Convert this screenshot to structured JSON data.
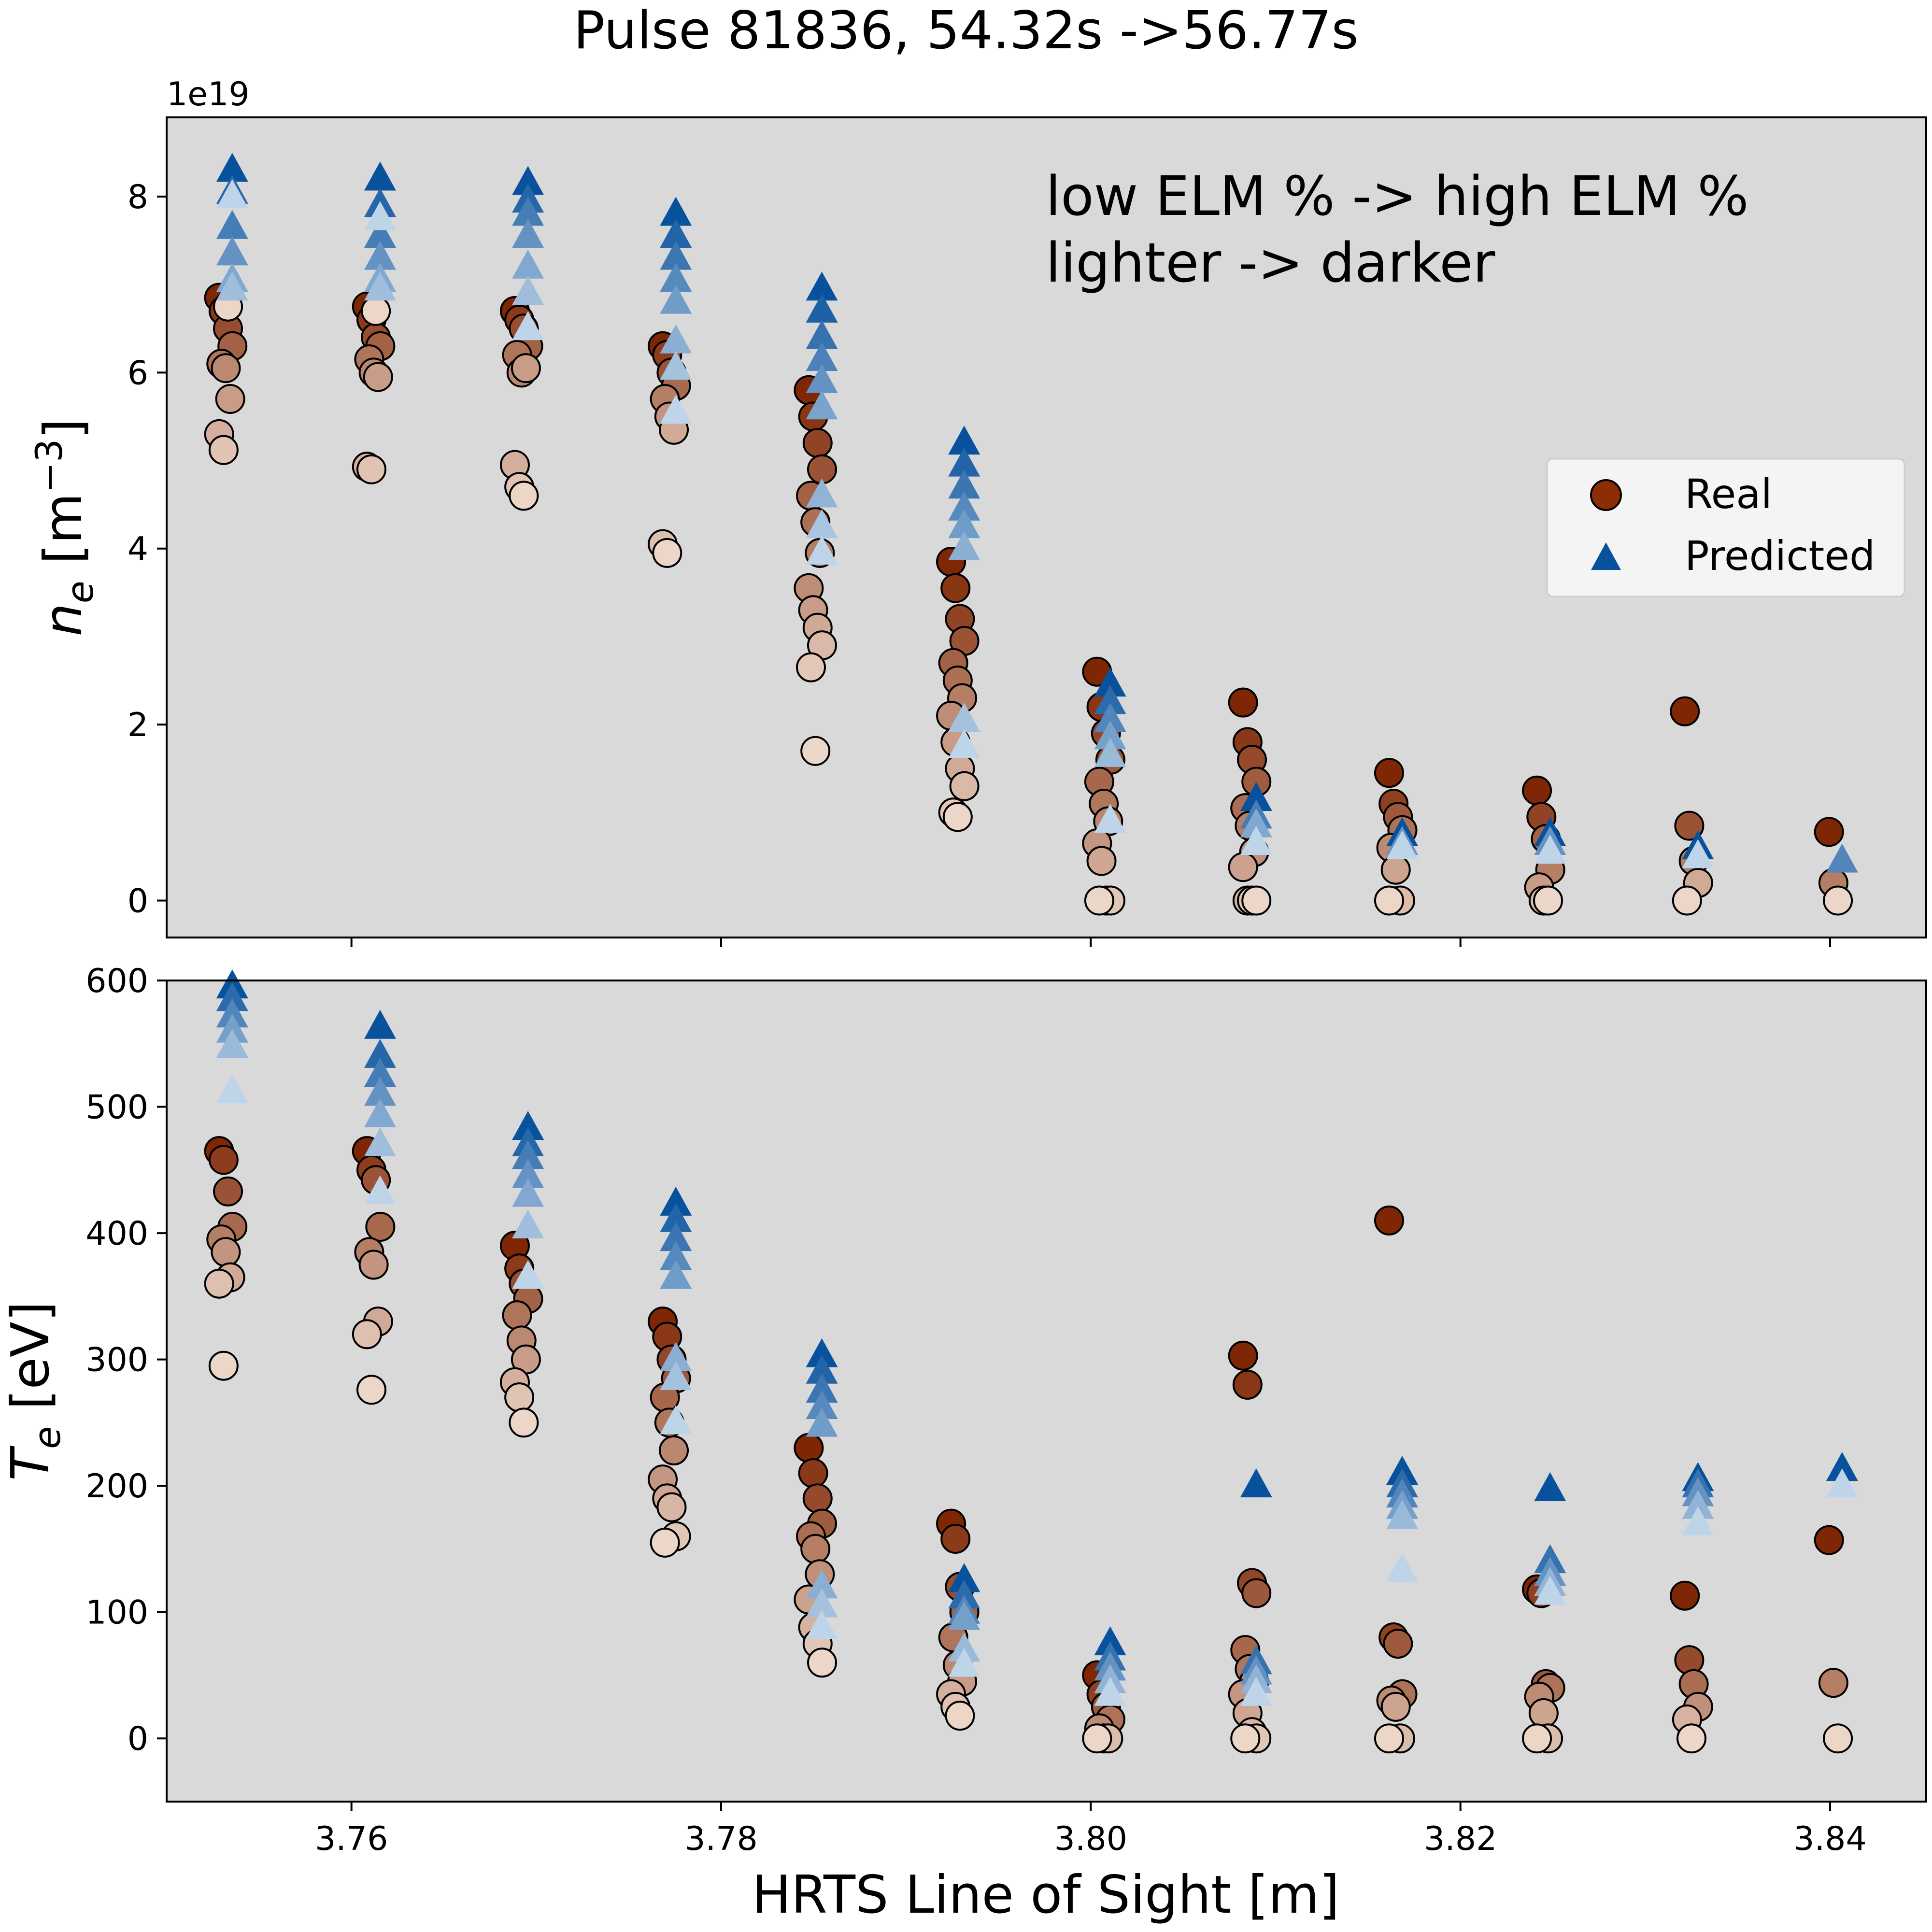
{
  "figure": {
    "title": "Pulse 81836, 54.32s ->56.77s",
    "xlabel": "HRTS Line of Sight [m]",
    "annotation_line1": "low ELM % -> high ELM %",
    "annotation_line2": "lighter -> darker",
    "legend": {
      "real": "Real",
      "predicted": "Predicted"
    }
  },
  "colors": {
    "panel_bg": "#d9d9d9",
    "real_dark": "#7f2704",
    "real_light": "#fff5eb",
    "pred_dark": "#08519c",
    "pred_light": "#deebf7",
    "marker_edge": "#000000"
  },
  "chart_data": [
    {
      "type": "scatter",
      "name": "ne",
      "ylabel_main": "n",
      "ylabel_sub": "e",
      "ylabel_unit": " [m",
      "ylabel_exp": "−3",
      "ylabel_close": "]",
      "offset_text": "1e19",
      "ylim": [
        -0.42,
        8.9
      ],
      "yticks": [
        0,
        2,
        4,
        6,
        8
      ],
      "xlim": [
        3.75,
        3.8452
      ],
      "xticks": [
        3.76,
        3.78,
        3.8,
        3.82,
        3.84
      ],
      "xticklabels": [
        "3.76",
        "3.78",
        "3.80",
        "3.82",
        "3.84"
      ],
      "legend": "right",
      "grid": false,
      "x_positions": [
        3.7532,
        3.7612,
        3.7692,
        3.7772,
        3.7851,
        3.7928,
        3.8007,
        3.8086,
        3.8165,
        3.8245,
        3.8325,
        3.8403
      ],
      "series": [
        {
          "name": "Real",
          "marker": "circle",
          "groups": [
            [
              6.85,
              6.7,
              6.5,
              6.3,
              6.1,
              6.05,
              5.7,
              5.3,
              5.12,
              6.75
            ],
            [
              6.75,
              6.6,
              6.4,
              6.3,
              6.15,
              6.0,
              5.95,
              4.93,
              4.9,
              6.7
            ],
            [
              6.7,
              6.6,
              6.5,
              6.3,
              6.2,
              6.0,
              6.05,
              4.95,
              4.7,
              4.6
            ],
            [
              6.3,
              6.2,
              6.0,
              5.85,
              5.7,
              5.5,
              5.35,
              4.05,
              3.95
            ],
            [
              5.8,
              5.5,
              5.2,
              4.9,
              4.6,
              4.3,
              3.95,
              3.55,
              3.3,
              3.1,
              2.9,
              2.65,
              1.7
            ],
            [
              3.85,
              3.55,
              3.2,
              2.95,
              2.7,
              2.5,
              2.3,
              2.1,
              1.8,
              1.5,
              1.3,
              1.0,
              0.95
            ],
            [
              2.6,
              2.2,
              1.9,
              1.6,
              1.35,
              1.1,
              0.9,
              0.65,
              0.45,
              0.0,
              0.0,
              0.0
            ],
            [
              2.25,
              1.8,
              1.6,
              1.35,
              1.05,
              0.85,
              0.55,
              0.38,
              0.0,
              0.0,
              0.0
            ],
            [
              1.45,
              1.1,
              0.95,
              0.8,
              0.6,
              0.35,
              0.0,
              0.0
            ],
            [
              1.25,
              0.95,
              0.7,
              0.35,
              0.15,
              0.0,
              0.0
            ],
            [
              2.15,
              0.85,
              0.45,
              0.2,
              0.0
            ],
            [
              0.78,
              0.2,
              0.0
            ]
          ]
        },
        {
          "name": "Predicted",
          "marker": "triangle",
          "groups": [
            [
              8.3,
              8.05,
              7.65,
              7.35,
              7.05,
              6.95,
              8.0
            ],
            [
              8.2,
              7.9,
              7.55,
              7.3,
              7.05,
              6.95,
              7.75
            ],
            [
              8.15,
              7.95,
              7.8,
              7.55,
              7.2,
              6.9,
              6.5
            ],
            [
              7.8,
              7.55,
              7.3,
              7.05,
              6.8,
              6.35,
              6.05,
              5.55
            ],
            [
              6.95,
              6.7,
              6.4,
              6.15,
              5.9,
              5.6,
              4.6,
              4.25,
              3.95
            ],
            [
              5.2,
              4.95,
              4.7,
              4.45,
              4.25,
              4.0,
              2.05,
              1.75
            ],
            [
              2.45,
              2.25,
              2.05,
              1.85,
              1.65,
              0.9
            ],
            [
              1.15,
              0.95,
              0.85,
              0.65
            ],
            [
              0.75,
              0.65,
              0.6
            ],
            [
              0.75,
              0.65,
              0.55
            ],
            [
              0.6,
              0.5
            ],
            [
              0.45
            ]
          ]
        }
      ]
    },
    {
      "type": "scatter",
      "name": "Te",
      "ylabel_main": "T",
      "ylabel_sub": "e",
      "ylabel_unit": " [eV]",
      "ylim": [
        -50,
        600
      ],
      "yticks": [
        0,
        100,
        200,
        300,
        400,
        500,
        600
      ],
      "xlim": [
        3.75,
        3.8452
      ],
      "xticks": [
        3.76,
        3.78,
        3.8,
        3.82,
        3.84
      ],
      "xticklabels": [
        "3.76",
        "3.78",
        "3.80",
        "3.82",
        "3.84"
      ],
      "grid": false,
      "x_positions": [
        3.7532,
        3.7612,
        3.7692,
        3.7772,
        3.7851,
        3.7928,
        3.8007,
        3.8086,
        3.8165,
        3.8245,
        3.8325,
        3.8403
      ],
      "series": [
        {
          "name": "Real",
          "marker": "circle",
          "groups": [
            [
              465,
              458,
              433,
              405,
              395,
              385,
              365,
              360,
              295
            ],
            [
              465,
              450,
              442,
              405,
              385,
              375,
              330,
              320,
              276
            ],
            [
              390,
              372,
              360,
              348,
              335,
              315,
              300,
              282,
              270,
              250
            ],
            [
              330,
              318,
              300,
              285,
              270,
              250,
              228,
              205,
              190,
              183,
              160,
              155
            ],
            [
              230,
              210,
              190,
              170,
              160,
              150,
              130,
              110,
              88,
              75,
              60
            ],
            [
              170,
              158,
              120,
              100,
              80,
              58,
              45,
              35,
              25,
              18
            ],
            [
              50,
              35,
              25,
              15,
              8,
              0,
              0,
              0
            ],
            [
              303,
              280,
              123,
              115,
              70,
              55,
              45,
              35,
              20,
              5,
              0,
              0
            ],
            [
              410,
              80,
              75,
              35,
              30,
              25,
              0,
              0
            ],
            [
              118,
              115,
              43,
              40,
              33,
              20,
              0,
              0
            ],
            [
              113,
              62,
              43,
              25,
              15,
              0
            ],
            [
              157,
              44,
              0
            ]
          ]
        },
        {
          "name": "Predicted",
          "marker": "triangle",
          "groups": [
            [
              595,
              585,
              572,
              560,
              548,
              512
            ],
            [
              563,
              540,
              525,
              510,
              493,
              470,
              432
            ],
            [
              483,
              470,
              460,
              445,
              430,
              405,
              365
            ],
            [
              423,
              410,
              395,
              380,
              365,
              300,
              285,
              250
            ],
            [
              303,
              290,
              275,
              262,
              248,
              120,
              105,
              88
            ],
            [
              125,
              112,
              100,
              95,
              70,
              58
            ],
            [
              75,
              63,
              55,
              45,
              35
            ],
            [
              200,
              60,
              52,
              45,
              35
            ],
            [
              210,
              200,
              192,
              183,
              175,
              133
            ],
            [
              197,
              140,
              130,
              122,
              115
            ],
            [
              205,
              200,
              193,
              183,
              170
            ],
            [
              213,
              200
            ]
          ]
        }
      ]
    }
  ]
}
